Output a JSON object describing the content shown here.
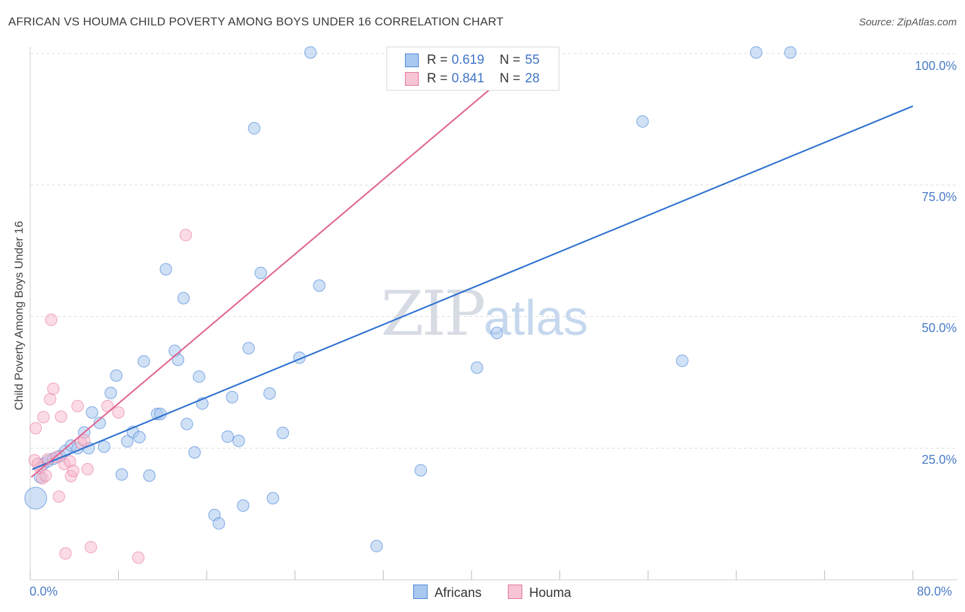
{
  "title": "AFRICAN VS HOUMA CHILD POVERTY AMONG BOYS UNDER 16 CORRELATION CHART",
  "source": "Source: ZipAtlas.com",
  "watermark": {
    "zip": "ZIP",
    "atlas": "atlas"
  },
  "colors": {
    "africans": "#4a86d8",
    "africans_fill": "#a9c8ef",
    "houma": "#e3729a",
    "houma_fill": "#f7b8cc"
  },
  "stats": {
    "africans": {
      "r_label": "R =",
      "r": "0.619",
      "n_label": "N =",
      "n": "55"
    },
    "houma": {
      "r_label": "R =",
      "r": "0.841",
      "n_label": "N =",
      "n": "28"
    }
  },
  "legend": {
    "africans": "Africans",
    "houma": "Houma"
  },
  "chart_data": {
    "type": "scatter",
    "title": "AFRICAN VS HOUMA CHILD POVERTY AMONG BOYS UNDER 16 CORRELATION CHART",
    "xlabel": "",
    "ylabel": "Child Poverty Among Boys Under 16",
    "xlim": [
      0,
      80
    ],
    "ylim": [
      0,
      100
    ],
    "x_tick_labels": [
      "0.0%",
      "80.0%"
    ],
    "y_ticks": [
      25,
      50,
      75,
      100
    ],
    "y_tick_labels": [
      "25.0%",
      "50.0%",
      "75.0%",
      "100.0%"
    ],
    "grid": true,
    "series": [
      {
        "name": "Africans",
        "points": [
          [
            0.5,
            15.5,
            3
          ],
          [
            0.9,
            19.5,
            1
          ],
          [
            1.2,
            22,
            1
          ],
          [
            1.6,
            22.5,
            1
          ],
          [
            2.1,
            23,
            1
          ],
          [
            2.7,
            23.5,
            1
          ],
          [
            3.2,
            24.5,
            1
          ],
          [
            3.7,
            25.5,
            1
          ],
          [
            4.3,
            25,
            1
          ],
          [
            4.9,
            28,
            1
          ],
          [
            5.3,
            25,
            1
          ],
          [
            5.6,
            31.8,
            1
          ],
          [
            6.3,
            29.8,
            1
          ],
          [
            6.7,
            25.3,
            1
          ],
          [
            7.3,
            35.5,
            1
          ],
          [
            7.8,
            38.8,
            1
          ],
          [
            8.3,
            20,
            1
          ],
          [
            8.8,
            26.3,
            1
          ],
          [
            9.3,
            28.1,
            1
          ],
          [
            9.9,
            27.1,
            1
          ],
          [
            10.3,
            41.5,
            1
          ],
          [
            10.8,
            19.8,
            1
          ],
          [
            11.5,
            31.5,
            1
          ],
          [
            11.8,
            31.5,
            1
          ],
          [
            12.3,
            59,
            1
          ],
          [
            13.1,
            43.5,
            1
          ],
          [
            13.4,
            41.8,
            1
          ],
          [
            13.9,
            53.5,
            1
          ],
          [
            14.2,
            29.6,
            1
          ],
          [
            14.9,
            24.2,
            1
          ],
          [
            15.3,
            38.6,
            1
          ],
          [
            15.6,
            33.5,
            1
          ],
          [
            16.7,
            12.3,
            1
          ],
          [
            17.1,
            10.7,
            1
          ],
          [
            17.9,
            27.2,
            1
          ],
          [
            18.3,
            34.7,
            1
          ],
          [
            18.9,
            26.4,
            1
          ],
          [
            19.3,
            14.1,
            1
          ],
          [
            19.8,
            44,
            1
          ],
          [
            20.3,
            85.8,
            1
          ],
          [
            20.9,
            58.3,
            1
          ],
          [
            21.7,
            35.4,
            1
          ],
          [
            22.0,
            15.5,
            1
          ],
          [
            22.9,
            27.9,
            1
          ],
          [
            24.4,
            42.2,
            1
          ],
          [
            25.4,
            100.2,
            1
          ],
          [
            26.2,
            55.9,
            1
          ],
          [
            31.4,
            6.4,
            1
          ],
          [
            35.4,
            20.8,
            1
          ],
          [
            40.5,
            40.3,
            1
          ],
          [
            42.3,
            46.9,
            1
          ],
          [
            55.5,
            87.1,
            1
          ],
          [
            59.1,
            41.6,
            1
          ],
          [
            65.8,
            100.2,
            1
          ],
          [
            68.9,
            100.2,
            1
          ]
        ],
        "trend": [
          [
            0.2,
            21
          ],
          [
            80,
            90
          ]
        ]
      },
      {
        "name": "Houma",
        "points": [
          [
            0.4,
            22.7
          ],
          [
            0.5,
            28.8
          ],
          [
            0.9,
            21.2
          ],
          [
            1.1,
            19.3
          ],
          [
            1.2,
            30.9
          ],
          [
            1.4,
            19.8
          ],
          [
            1.6,
            22.9
          ],
          [
            1.8,
            34.3
          ],
          [
            2.1,
            36.3
          ],
          [
            2.6,
            15.8
          ],
          [
            2.8,
            31
          ],
          [
            3.1,
            22
          ],
          [
            3.2,
            5
          ],
          [
            3.6,
            22.5
          ],
          [
            3.7,
            19.7
          ],
          [
            3.9,
            20.7
          ],
          [
            4.3,
            33
          ],
          [
            4.6,
            26
          ],
          [
            5.2,
            21
          ],
          [
            5.5,
            6.2
          ],
          [
            7.0,
            33
          ],
          [
            8.0,
            31.8
          ],
          [
            9.8,
            4.2
          ],
          [
            14.1,
            65.5
          ],
          [
            1.9,
            49.4
          ],
          [
            0.7,
            22
          ],
          [
            2.4,
            23.3
          ],
          [
            4.9,
            26.5
          ]
        ],
        "trend": [
          [
            0.1,
            19.5
          ],
          [
            45.5,
            100
          ]
        ]
      }
    ]
  }
}
